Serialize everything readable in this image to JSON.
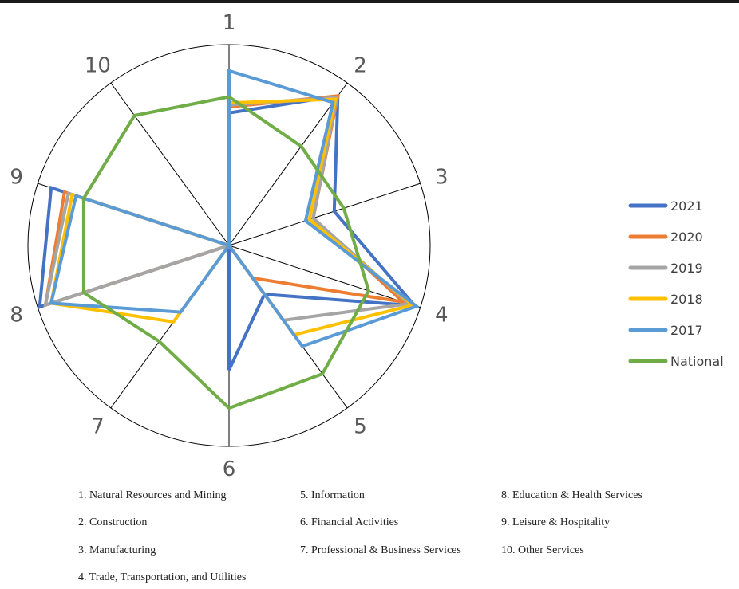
{
  "chart_data": {
    "type": "radar",
    "categories": [
      "1",
      "2",
      "3",
      "4",
      "5",
      "6",
      "7",
      "8",
      "9",
      "10"
    ],
    "rmax": 1.0,
    "series": [
      {
        "name": "2021",
        "color": "#4472C4",
        "values": [
          0.66,
          0.92,
          0.55,
          0.97,
          0.3,
          0.62,
          0.0,
          0.99,
          0.93,
          0.0
        ]
      },
      {
        "name": "2020",
        "color": "#ED7D31",
        "values": [
          0.69,
          0.92,
          0.44,
          0.91,
          0.2,
          0.0,
          0.0,
          0.96,
          0.86,
          0.0
        ]
      },
      {
        "name": "2019",
        "color": "#A5A5A5",
        "values": [
          0.7,
          0.91,
          0.44,
          0.94,
          0.46,
          0.0,
          0.0,
          0.96,
          0.84,
          0.0
        ]
      },
      {
        "name": "2018",
        "color": "#FFC000",
        "values": [
          0.71,
          0.9,
          0.42,
          0.96,
          0.55,
          0.0,
          0.47,
          0.93,
          0.82,
          0.0
        ]
      },
      {
        "name": "2017",
        "color": "#5B9BD5",
        "values": [
          0.87,
          0.88,
          0.4,
          0.98,
          0.62,
          0.0,
          0.41,
          0.93,
          0.8,
          0.0
        ]
      },
      {
        "name": "National",
        "color": "#70AD47",
        "values": [
          0.74,
          0.61,
          0.6,
          0.73,
          0.79,
          0.81,
          0.59,
          0.76,
          0.76,
          0.8
        ]
      }
    ]
  },
  "footnotes": [
    "1. Natural Resources and Mining",
    "2. Construction",
    "3. Manufacturing",
    "4. Trade, Transportation, and Utilities",
    "5. Information",
    "6. Financial Activities",
    "7. Professional & Business Services",
    "8. Education & Health Services",
    "9. Leisure & Hospitality",
    "10. Other Services"
  ]
}
